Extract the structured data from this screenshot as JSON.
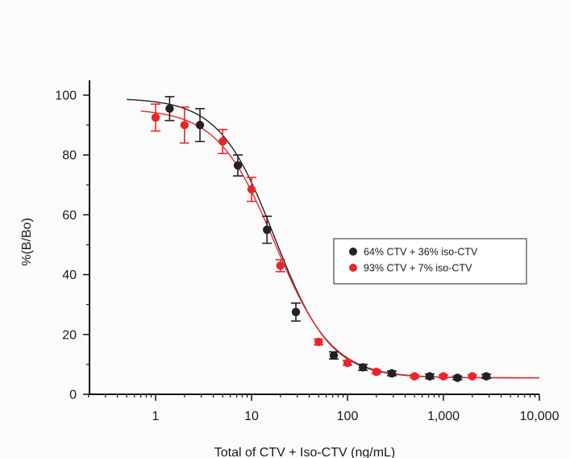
{
  "chart_data": {
    "type": "scatter",
    "title": "",
    "xlabel": "Total of CTV + Iso-CTV (ng/mL)",
    "ylabel": "%(B/Bo)",
    "xscale": "log",
    "xlim": [
      0.2,
      10000
    ],
    "ylim": [
      0,
      105
    ],
    "x_ticks": [
      1,
      10,
      100,
      1000,
      10000
    ],
    "x_tick_labels": [
      "1",
      "10",
      "100",
      "1,000",
      "10,000"
    ],
    "y_ticks": [
      0,
      20,
      40,
      60,
      80,
      100
    ],
    "y_tick_labels": [
      "0",
      "20",
      "40",
      "60",
      "80",
      "100"
    ],
    "grid": false,
    "legend_position": "right-middle",
    "series": [
      {
        "name": "64% CTV + 36% iso-CTV",
        "color": "#222222",
        "marker": "circle",
        "x": [
          1.4,
          2.9,
          7.2,
          14.5,
          29,
          72,
          145,
          290,
          720,
          1400,
          2800
        ],
        "y": [
          95.5,
          90,
          76.5,
          55,
          27.5,
          13,
          9,
          7,
          6,
          5.5,
          6
        ],
        "err": [
          4,
          5.5,
          3.5,
          4.5,
          3,
          1.2,
          1,
          0.8,
          0.8,
          0.6,
          0.7
        ],
        "fit": {
          "top": 99,
          "bottom": 5.5,
          "ec50": 17.5,
          "hill": 1.5
        }
      },
      {
        "name": "93% CTV + 7% iso-CTV",
        "color": "#e8262b",
        "marker": "circle",
        "x": [
          1,
          2,
          5,
          10,
          20,
          50,
          100,
          200,
          500,
          1000,
          2000
        ],
        "y": [
          92.5,
          90,
          84.5,
          68.5,
          43,
          17.5,
          10.5,
          7.5,
          6,
          6,
          6
        ],
        "err": [
          4.5,
          6,
          4,
          4,
          2,
          1,
          0.8,
          0.6,
          0.5,
          0.5,
          0.5
        ],
        "fit": {
          "top": 95.5,
          "bottom": 5.5,
          "ec50": 17.5,
          "hill": 1.45
        }
      }
    ]
  }
}
